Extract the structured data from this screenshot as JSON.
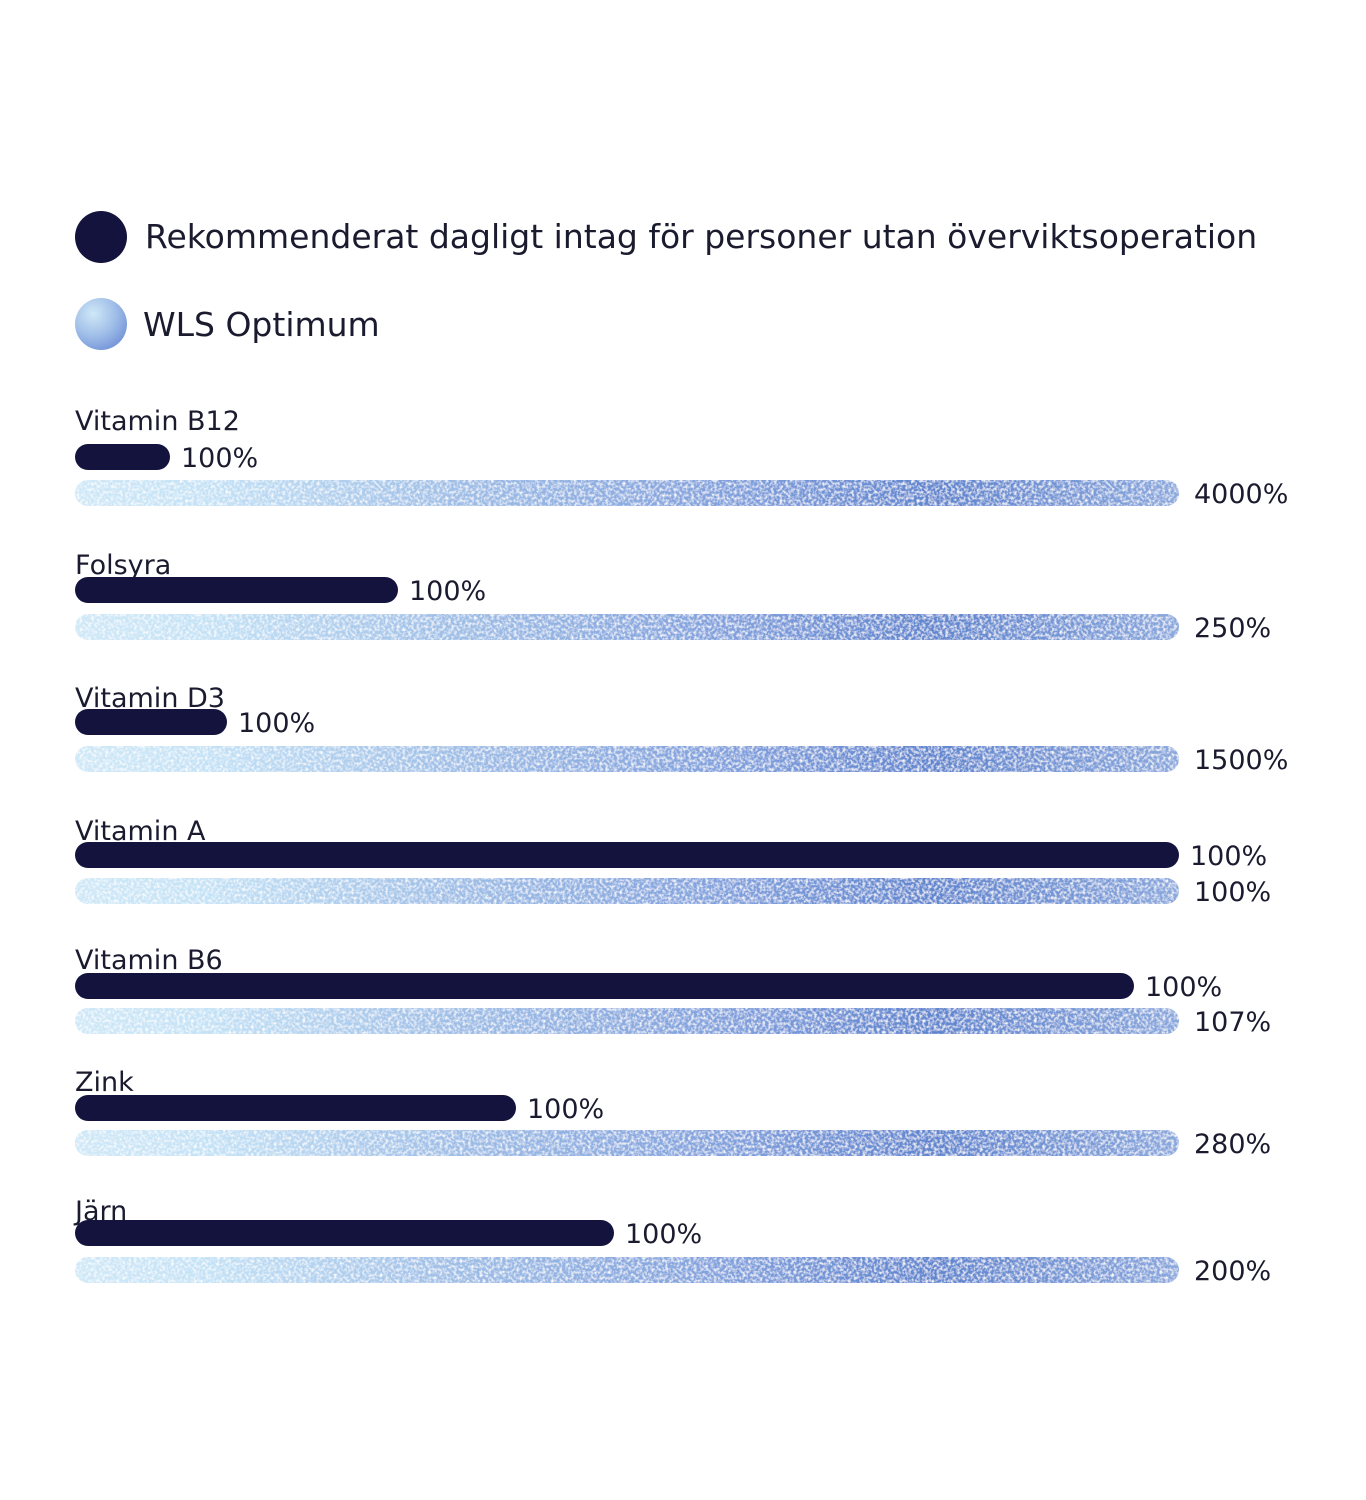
{
  "chart_data": {
    "type": "bar",
    "orientation": "horizontal",
    "legend": [
      {
        "name": "Rekommenderat dagligt intag för personer utan överviktsoperation",
        "color": "#14133d"
      },
      {
        "name": "WLS Optimum",
        "color": "#6f95d6"
      }
    ],
    "legend_placement": "top-left",
    "grid": false,
    "categories": [
      "Vitamin B12",
      "Folsyra",
      "Vitamin D3",
      "Vitamin A",
      "Vitamin B6",
      "Zink",
      "Järn"
    ],
    "series": [
      {
        "name": "Rekommenderat dagligt intag för personer utan överviktsoperation",
        "values": [
          100,
          100,
          100,
          100,
          100,
          100,
          100
        ],
        "labels": [
          "100%",
          "100%",
          "100%",
          "100%",
          "100%",
          "100%",
          "100%"
        ]
      },
      {
        "name": "WLS Optimum",
        "values": [
          4000,
          250,
          1500,
          100,
          107,
          280,
          200
        ],
        "labels": [
          "4000%",
          "250%",
          "1500%",
          "100%",
          "107%",
          "280%",
          "200%"
        ]
      }
    ]
  },
  "colors": {
    "dark_bar": "#14133d",
    "light_start": "#cfe8f7",
    "light_mid": "#8fb0e0",
    "light_end": "#5f85cf"
  }
}
